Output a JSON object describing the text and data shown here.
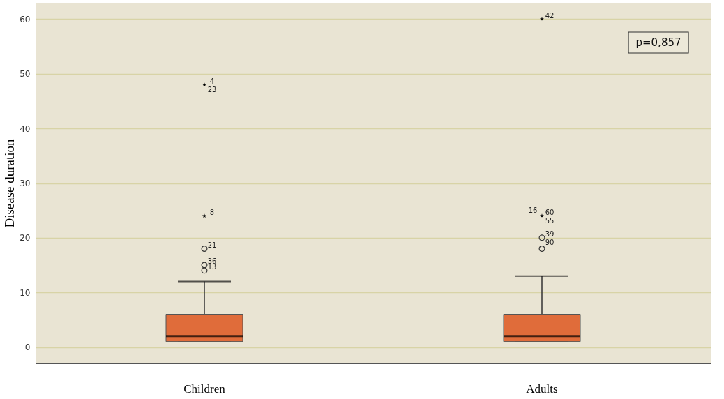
{
  "chart_data": {
    "type": "box",
    "categories": [
      "Children",
      "Adults"
    ],
    "ylabel": "Disease duration",
    "ylim": [
      -3,
      63
    ],
    "yticks": [
      0,
      10,
      20,
      30,
      40,
      50,
      60
    ],
    "grid": "y",
    "series": [
      {
        "color": "#e06c3a",
        "boxes": [
          {
            "low": 1,
            "q1": 1,
            "median": 2,
            "q3": 6,
            "high": 12
          },
          {
            "low": 1,
            "q1": 1,
            "median": 2,
            "q3": 6,
            "high": 13
          }
        ]
      },
      {
        "type": "scatter",
        "marker": "circle",
        "color": "#333333",
        "x": [
          "Children",
          "Children",
          "Children",
          "Adults",
          "Adults"
        ],
        "values": [
          14,
          15,
          18,
          18,
          20
        ]
      },
      {
        "type": "scatter",
        "marker": "star",
        "color": "#000000",
        "x": [
          "Children",
          "Children",
          "Adults",
          "Adults"
        ],
        "values": [
          48,
          24,
          60,
          24
        ]
      }
    ],
    "annotations": [
      {
        "text": "4",
        "x": "Children",
        "y": 48
      },
      {
        "text": "23",
        "x": "Children",
        "y": 48
      },
      {
        "text": "8",
        "x": "Children",
        "y": 24
      },
      {
        "text": "21",
        "x": "Children",
        "y": 18
      },
      {
        "text": "36",
        "x": "Children",
        "y": 15
      },
      {
        "text": "13",
        "x": "Children",
        "y": 14
      },
      {
        "text": "42",
        "x": "Adults",
        "y": 60
      },
      {
        "text": "60",
        "x": "Adults",
        "y": 24
      },
      {
        "text": "55",
        "x": "Adults",
        "y": 24
      },
      {
        "text": "16",
        "x": "Adults",
        "y": 24
      },
      {
        "text": "39",
        "x": "Adults",
        "y": 20
      },
      {
        "text": "90",
        "x": "Adults",
        "y": 20
      },
      "p=0,857"
    ]
  }
}
